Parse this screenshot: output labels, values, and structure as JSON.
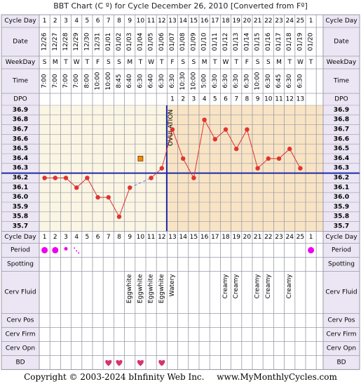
{
  "header": {
    "title": "BBT Chart (C º) for Cycle December 26, 2010  [Converted from Fº]"
  },
  "footer": {
    "copyright": "Copyright © 2003-2024 bInfinity Web Inc.",
    "site": "www.MyMonthlyCycles.com"
  },
  "row_labels": {
    "cycle_day": "Cycle Day",
    "date": "Date",
    "weekday": "WeekDay",
    "time": "Time",
    "dpo": "DPO",
    "period": "Period",
    "spotting": "Spotting",
    "cerv_fluid": "Cerv Fluid",
    "cerv_pos": "Cerv Pos",
    "cerv_firm": "Cerv Firm",
    "cerv_opn": "Cerv Opn",
    "bd": "BD"
  },
  "ovulation_label": "OVULATION",
  "columns": {
    "cycle_days": [
      "1",
      "2",
      "3",
      "4",
      "5",
      "6",
      "7",
      "8",
      "9",
      "10",
      "11",
      "12",
      "13",
      "14",
      "15",
      "16",
      "17",
      "18",
      "19",
      "20",
      "21",
      "22",
      "23",
      "24",
      "25",
      "1"
    ],
    "dates": [
      "12/26",
      "12/27",
      "12/28",
      "12/29",
      "12/30",
      "12/31",
      "01/01",
      "01/02",
      "01/03",
      "01/04",
      "01/05",
      "01/06",
      "01/07",
      "01/08",
      "01/09",
      "01/10",
      "01/11",
      "01/12",
      "01/13",
      "01/14",
      "01/15",
      "01/16",
      "01/17",
      "01/18",
      "01/19",
      "01/20"
    ],
    "weekdays": [
      "S",
      "M",
      "T",
      "W",
      "T",
      "F",
      "S",
      "S",
      "M",
      "T",
      "W",
      "T",
      "F",
      "S",
      "S",
      "M",
      "T",
      "W",
      "T",
      "F",
      "S",
      "S",
      "M",
      "T",
      "W",
      "T"
    ],
    "times": [
      "7:00",
      "7:00",
      "7:00",
      "7:00",
      "8:00",
      "10:00",
      "10:00",
      "8:45",
      "6:40",
      "6:30",
      "6:40",
      "6:30",
      "6:30",
      "10:30",
      "10:00",
      "5:00",
      "6:30",
      "6:30",
      "6:30",
      "6:30",
      "10:00",
      "6:30",
      "6:45",
      "6:30",
      "6:30",
      ""
    ],
    "dpo": [
      "",
      "",
      "",
      "",
      "",
      "",
      "",
      "",
      "",
      "",
      "",
      "",
      "1",
      "2",
      "3",
      "4",
      "5",
      "6",
      "7",
      "8",
      "9",
      "10",
      "11",
      "12",
      "13",
      ""
    ],
    "cerv_fluid": [
      "",
      "",
      "",
      "",
      "",
      "",
      "",
      "",
      "Eggwhite",
      "Eggwhite",
      "Eggwhite",
      "Eggwhite",
      "Watery",
      "",
      "",
      "",
      "",
      "Creamy",
      "Creamy",
      "",
      "Creamy",
      "Creamy",
      "",
      "Creamy",
      "",
      ""
    ],
    "period": [
      "heavy",
      "heavy",
      "medium",
      "spotting",
      "",
      "",
      "",
      "",
      "",
      "",
      "",
      "",
      "",
      "",
      "",
      "",
      "",
      "",
      "",
      "",
      "",
      "",
      "",
      "",
      "",
      "heavy"
    ],
    "bd": [
      false,
      false,
      false,
      false,
      false,
      false,
      true,
      true,
      false,
      true,
      false,
      true,
      false,
      false,
      false,
      false,
      false,
      false,
      false,
      false,
      false,
      false,
      false,
      false,
      false,
      false
    ]
  },
  "colors": {
    "border": "#9a9aa8",
    "label_bg": "#ece6f4",
    "pre_ovulation_bg": "#fbf5e4",
    "post_ovulation_bg": "#f8e4c4",
    "temperature_line": "#e0342f",
    "coverline": "#1c2aa8",
    "ovulation_line": "#1c2aa8",
    "period_dot": "#ee00ee",
    "heart": "#d6336c",
    "outlier_marker": "#f08b00"
  },
  "chart_data": {
    "type": "line",
    "x": [
      1,
      2,
      3,
      4,
      5,
      6,
      7,
      8,
      9,
      10,
      11,
      12,
      13,
      14,
      15,
      16,
      17,
      18,
      19,
      20,
      21,
      22,
      23,
      24,
      25
    ],
    "series": [
      {
        "values": [
          36.2,
          36.2,
          36.2,
          36.1,
          36.2,
          36.0,
          36.0,
          35.8,
          36.1,
          null,
          36.2,
          36.3,
          36.7,
          36.4,
          36.2,
          36.8,
          36.6,
          36.7,
          36.5,
          36.7,
          36.3,
          36.4,
          36.4,
          36.5,
          36.3
        ]
      }
    ],
    "outlier_points": [
      {
        "x": 10,
        "y": 36.4
      }
    ],
    "coverline": 36.25,
    "ovulation_day": 12,
    "ylim": [
      35.7,
      36.9
    ],
    "y_ticks": [
      "36.9",
      "36.8",
      "36.7",
      "36.6",
      "36.5",
      "36.4",
      "36.3",
      "36.2",
      "36.1",
      "36.0",
      "35.9",
      "35.8",
      "35.7"
    ],
    "grid": true
  }
}
